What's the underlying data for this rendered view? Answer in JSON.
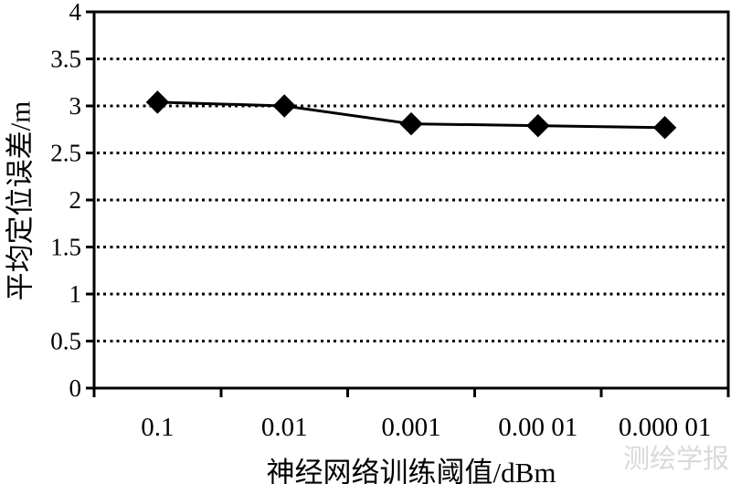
{
  "figure": {
    "background": "#ffffff",
    "ink_color": "#000000",
    "watermark": "测绘学报",
    "watermark_color": "#d9d9d9"
  },
  "chart_data": {
    "type": "line",
    "title": "",
    "xlabel": "神经网络训练阈值/dBm",
    "ylabel": "平均定位误差/m",
    "categories": [
      "0.1",
      "0.01",
      "0.001",
      "0.00 01",
      "0.000 01"
    ],
    "values": [
      3.04,
      3.0,
      2.81,
      2.79,
      2.77
    ],
    "ylim": [
      0,
      4
    ],
    "ytick_step": 0.5,
    "ytick_labels": [
      "0",
      "0.5",
      "1",
      "1.5",
      "2",
      "2.5",
      "3",
      "3.5",
      "4"
    ],
    "grid": "horizontal-dotted",
    "marker": "diamond",
    "legend": "none",
    "line_color": "#000000",
    "marker_color": "#000000"
  }
}
